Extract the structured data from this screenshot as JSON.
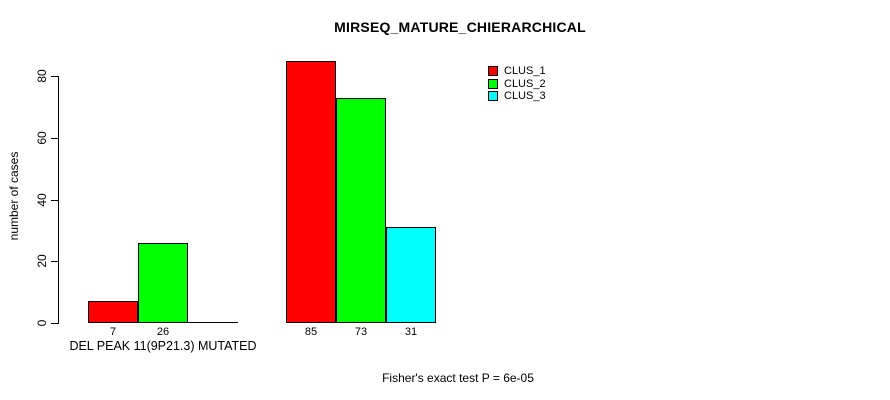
{
  "chart_data": {
    "type": "bar",
    "title": "MIRSEQ_MATURE_CHIERARCHICAL",
    "ylabel": "number of cases",
    "xlabel": "DEL PEAK 11(9P21.3) MUTATED",
    "categories": [
      "DEL PEAK 11(9P21.3) MUTATED",
      ""
    ],
    "series": [
      {
        "name": "CLUS_1",
        "color": "#ff0000",
        "values": [
          7,
          85
        ]
      },
      {
        "name": "CLUS_2",
        "color": "#00ff00",
        "values": [
          26,
          73
        ]
      },
      {
        "name": "CLUS_3",
        "color": "#00ffff",
        "values": [
          0,
          31
        ]
      }
    ],
    "bar_value_labels": [
      [
        "7",
        "26",
        ""
      ],
      [
        "85",
        "73",
        "31"
      ]
    ],
    "yticks": [
      0,
      20,
      40,
      60,
      80
    ],
    "ytick_labels": [
      "0",
      "20",
      "40",
      "60",
      "80"
    ],
    "ylim": [
      0,
      85
    ],
    "grid": false,
    "legend_position": "top-right",
    "annotation": "Fisher's exact test P = 6e-05",
    "bar_border_color": "#000000",
    "background_color": "#ffffff"
  }
}
